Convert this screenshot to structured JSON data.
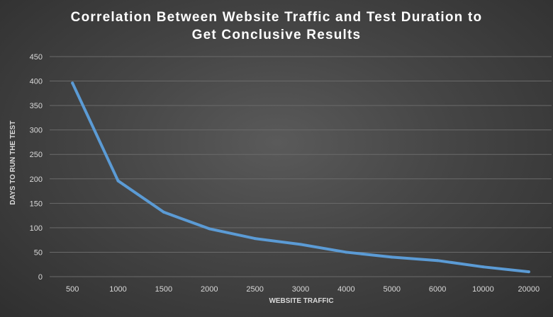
{
  "chart_data": {
    "type": "line",
    "title_lines": [
      "Correlation Between Website Traffic and Test Duration to",
      "Get Conclusive Results"
    ],
    "xlabel": "WEBSITE TRAFFIC",
    "ylabel": "DAYS TO RUN THE TEST",
    "categories": [
      "500",
      "1000",
      "1500",
      "2000",
      "2500",
      "3000",
      "4000",
      "5000",
      "6000",
      "10000",
      "20000"
    ],
    "series": [
      {
        "values": [
          396,
          196,
          132,
          98,
          78,
          66,
          50,
          40,
          33,
          20,
          10
        ],
        "color": "#5b9bd5"
      }
    ],
    "ylim": [
      0,
      450
    ],
    "yticks": [
      0,
      50,
      100,
      150,
      200,
      250,
      300,
      350,
      400,
      450
    ],
    "grid": true,
    "legend": "none"
  }
}
